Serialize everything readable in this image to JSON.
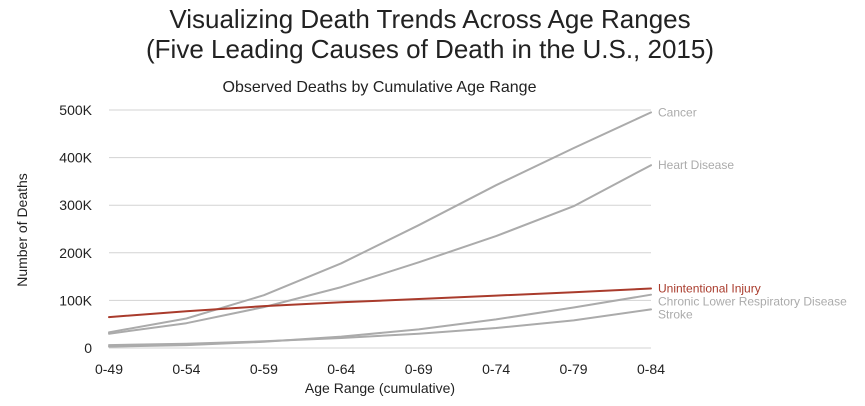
{
  "title_line1": "Visualizing Death Trends Across Age Ranges",
  "title_line2": "(Five Leading Causes of Death in the U.S., 2015)",
  "colors": {
    "highlight": "#a93b2c",
    "muted": "#ababab",
    "grid": "#d3d3d3",
    "text": "#222222"
  },
  "chart_data": {
    "type": "line",
    "title": "Observed Deaths by Cumulative Age Range",
    "xlabel": "Age Range (cumulative)",
    "ylabel": "Number of Deaths",
    "categories": [
      "0-49",
      "0-54",
      "0-59",
      "0-64",
      "0-69",
      "0-74",
      "0-79",
      "0-84"
    ],
    "ylim": [
      0,
      500000
    ],
    "yticks": [
      0,
      100000,
      200000,
      300000,
      400000,
      500000
    ],
    "ytick_labels": [
      "0",
      "100K",
      "200K",
      "300K",
      "400K",
      "500K"
    ],
    "grid": true,
    "legend": "direct labels at line ends (right)",
    "series": [
      {
        "name": "Cancer",
        "values": [
          33000,
          62000,
          111000,
          178000,
          258000,
          342000,
          420000,
          495000
        ],
        "color": "#ababab"
      },
      {
        "name": "Heart Disease",
        "values": [
          30000,
          52000,
          86000,
          128000,
          180000,
          235000,
          298000,
          384000
        ],
        "color": "#ababab"
      },
      {
        "name": "Unintentional Injury",
        "values": [
          65000,
          77000,
          88000,
          96000,
          103000,
          110000,
          117000,
          125000
        ],
        "color": "#a93b2c"
      },
      {
        "name": "Chronic Lower Respiratory Disease",
        "values": [
          3000,
          6000,
          13000,
          24000,
          39000,
          60000,
          85000,
          112000
        ],
        "color": "#ababab"
      },
      {
        "name": "Stroke",
        "values": [
          6000,
          9000,
          14000,
          21000,
          30000,
          42000,
          58000,
          81000
        ],
        "color": "#ababab"
      }
    ]
  }
}
